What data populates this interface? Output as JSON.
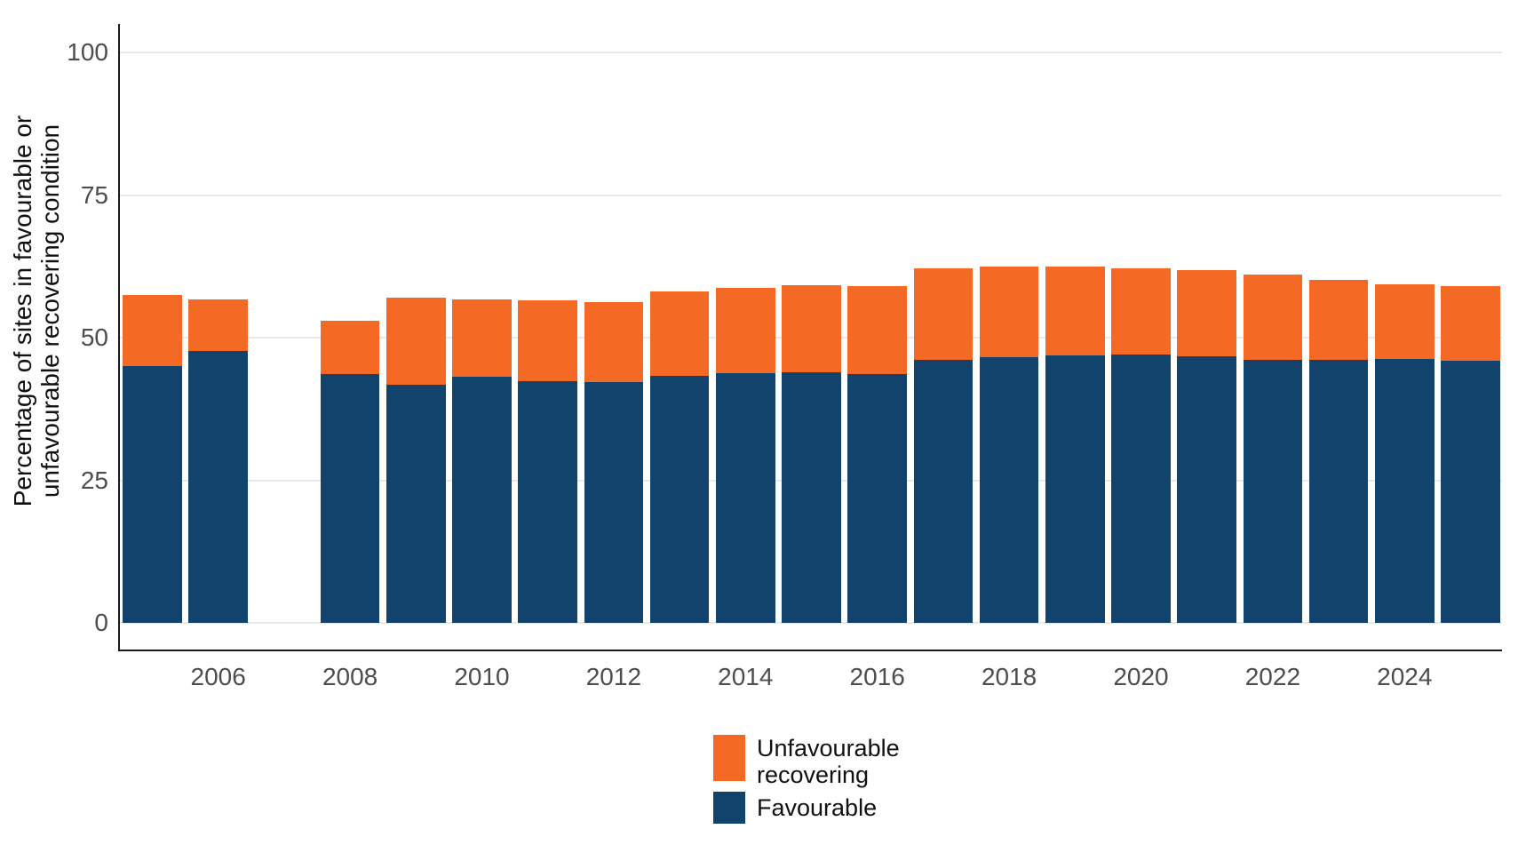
{
  "chart_data": {
    "type": "bar",
    "stacked": true,
    "title": "",
    "xlabel": "",
    "ylabel": "Percentage of sites in favourable or unfavourable recovering condition",
    "ylabel_lines": [
      "Percentage of sites in favourable or",
      "unfavourable recovering condition"
    ],
    "ylim": [
      0,
      100
    ],
    "yticks": [
      0,
      25,
      50,
      75,
      100
    ],
    "xticks": [
      2006,
      2008,
      2010,
      2012,
      2014,
      2016,
      2018,
      2020,
      2022,
      2024
    ],
    "categories": [
      2005,
      2006,
      2007,
      2008,
      2009,
      2010,
      2011,
      2012,
      2013,
      2014,
      2015,
      2016,
      2017,
      2018,
      2019,
      2020,
      2021,
      2022,
      2023,
      2024,
      2025
    ],
    "missing_years": [
      2007
    ],
    "grid": "horizontal",
    "legend_position": "bottom-center",
    "series": [
      {
        "name": "Favourable",
        "color": "#12436D",
        "values": [
          45.0,
          47.7,
          null,
          43.6,
          41.7,
          43.2,
          42.4,
          42.2,
          43.3,
          43.7,
          44.0,
          43.6,
          46.1,
          46.6,
          46.9,
          47.1,
          46.7,
          46.1,
          46.1,
          46.2,
          46.0
        ]
      },
      {
        "name": "Unfavourable recovering",
        "color": "#F46A25",
        "values": [
          12.4,
          9.0,
          null,
          9.3,
          15.3,
          13.5,
          14.1,
          14.0,
          14.8,
          15.0,
          15.2,
          15.5,
          16.0,
          15.9,
          15.6,
          15.1,
          15.1,
          15.0,
          14.0,
          13.2,
          13.1
        ]
      }
    ]
  },
  "colors": {
    "favourable": "#12436D",
    "unfavourable_recovering": "#F46A25",
    "tick_text": "#4d4d4d",
    "axis_line": "#1a1a1a",
    "gridline": "#e9e9e9",
    "background": "#ffffff"
  }
}
